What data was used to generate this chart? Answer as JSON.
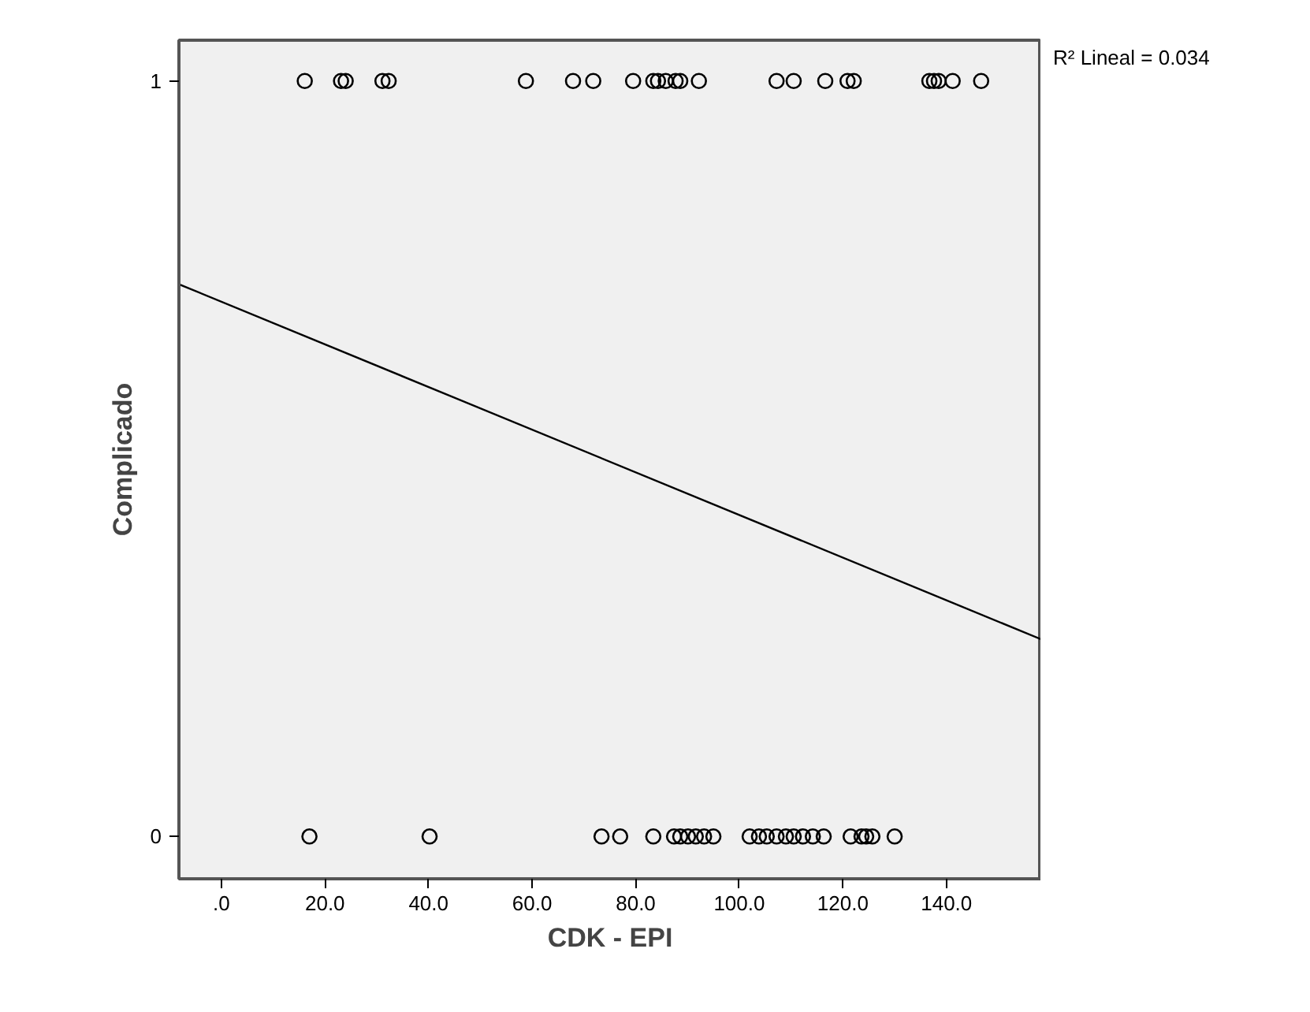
{
  "chart_data": {
    "type": "scatter",
    "xlabel": "CDK - EPI",
    "ylabel": "Complicado",
    "xlim": [
      -8.2,
      158.3
    ],
    "ylim": [
      -0.056,
      1.054
    ],
    "xticks": [
      {
        "value": 0,
        "label": ".0"
      },
      {
        "value": 20,
        "label": "20.0"
      },
      {
        "value": 40,
        "label": "40.0"
      },
      {
        "value": 60,
        "label": "60.0"
      },
      {
        "value": 80,
        "label": "80.0"
      },
      {
        "value": 100,
        "label": "100.0"
      },
      {
        "value": 120,
        "label": "120.0"
      },
      {
        "value": 140,
        "label": "140.0"
      }
    ],
    "yticks": [
      0,
      1
    ],
    "grid": false,
    "marker": "circle",
    "series": [
      {
        "color": "#000000",
        "x": [
          16.1,
          23.1,
          24.0,
          31.1,
          32.3,
          58.8,
          67.9,
          71.8,
          79.5,
          83.4,
          84.3,
          85.8,
          87.7,
          88.6,
          92.2,
          107.2,
          110.5,
          116.6,
          120.9,
          122.1,
          136.7,
          137.6,
          138.5,
          141.2,
          146.7
        ],
        "values": [
          1,
          1,
          1,
          1,
          1,
          1,
          1,
          1,
          1,
          1,
          1,
          1,
          1,
          1,
          1,
          1,
          1,
          1,
          1,
          1,
          1,
          1,
          1,
          1,
          1
        ]
      },
      {
        "color": "#000000",
        "x": [
          17.0,
          40.2,
          73.4,
          77.0,
          83.4,
          87.4,
          88.6,
          90.1,
          91.6,
          93.2,
          95.0,
          102.0,
          103.8,
          105.3,
          107.2,
          109.0,
          110.5,
          112.3,
          114.2,
          116.3,
          121.5,
          123.6,
          124.5,
          125.7,
          130.0
        ],
        "values": [
          0,
          0,
          0,
          0,
          0,
          0,
          0,
          0,
          0,
          0,
          0,
          0,
          0,
          0,
          0,
          0,
          0,
          0,
          0,
          0,
          0,
          0,
          0,
          0,
          0
        ]
      },
      {
        "type": "line",
        "line_style": "solid",
        "marker": "none",
        "color": "#000000",
        "x": [
          -8.2,
          158.3
        ],
        "values": [
          0.731,
          0.261
        ]
      }
    ],
    "annotations": [
      "R² Lineal = 0.034"
    ]
  }
}
